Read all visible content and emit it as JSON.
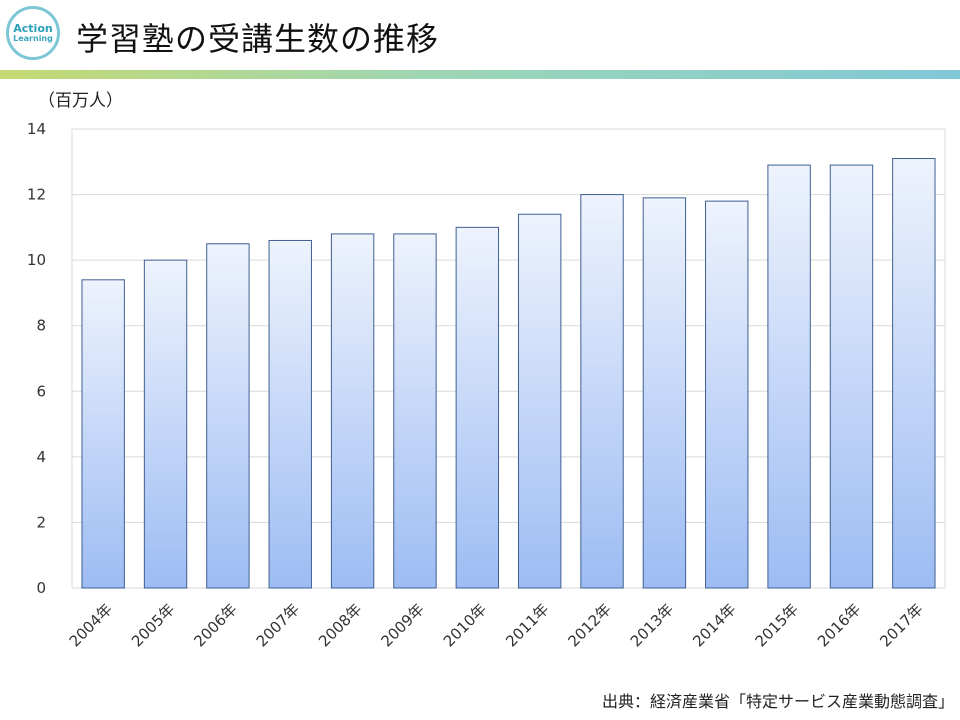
{
  "header": {
    "logo_line1": "Action",
    "logo_line2": "Learning",
    "title": "学習塾の受講生数の推移"
  },
  "source": "出典：経済産業省「特定サービス産業動態調査」",
  "colors": {
    "bar_top": "#eef3fd",
    "bar_bottom": "#9dbcf3",
    "bar_stroke": "#3f5f91",
    "grid": "#d9d9d9"
  },
  "chart_data": {
    "type": "bar",
    "unit_label": "（百万人）",
    "categories": [
      "2004年",
      "2005年",
      "2006年",
      "2007年",
      "2008年",
      "2009年",
      "2010年",
      "2011年",
      "2012年",
      "2013年",
      "2014年",
      "2015年",
      "2016年",
      "2017年"
    ],
    "values": [
      9.4,
      10.0,
      10.5,
      10.6,
      10.8,
      10.8,
      11.0,
      11.4,
      12.0,
      11.9,
      11.8,
      12.9,
      12.9,
      13.1
    ],
    "ylim": [
      0,
      14
    ],
    "yticks": [
      0,
      2,
      4,
      6,
      8,
      10,
      12,
      14
    ],
    "grid": true,
    "legend": "none"
  }
}
